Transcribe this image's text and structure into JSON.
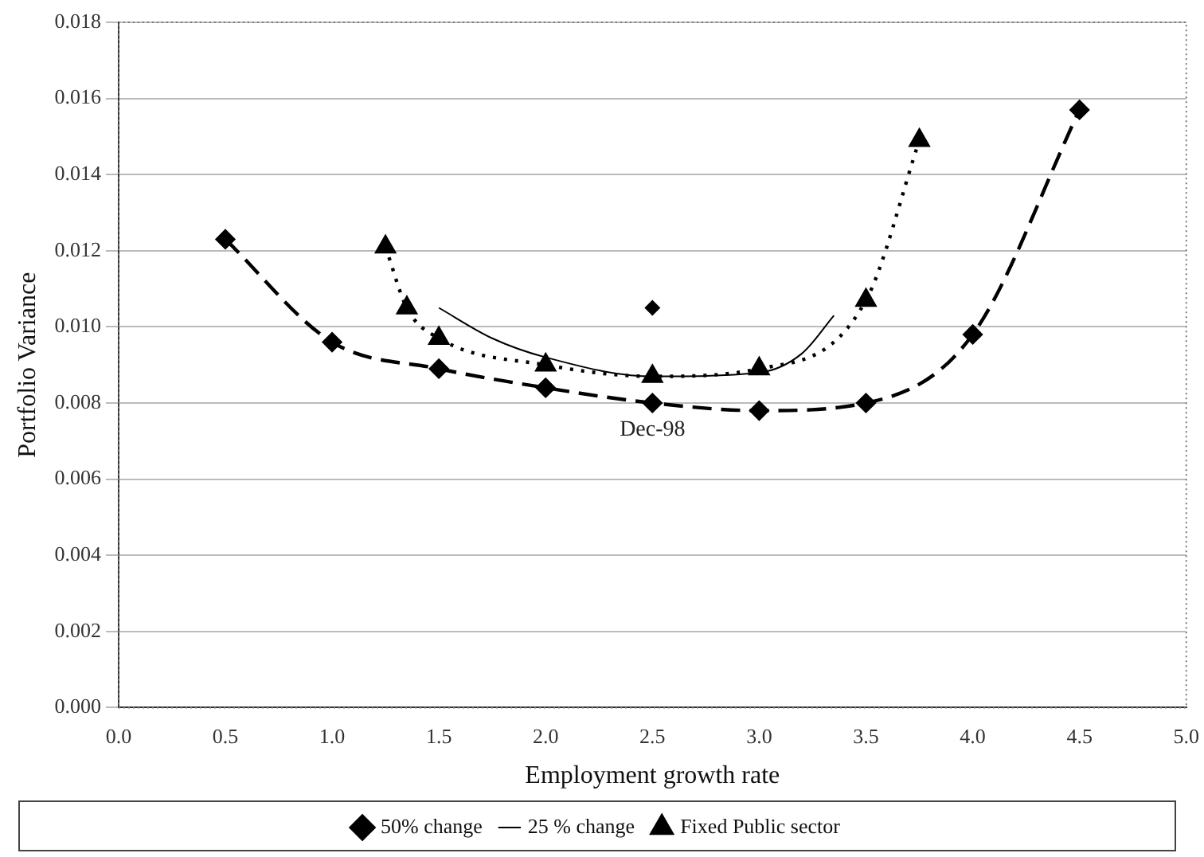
{
  "chart_data": {
    "type": "line",
    "xlabel": "Employment growth rate",
    "ylabel": "Portfolio Variance",
    "xlim": [
      0,
      5
    ],
    "xticks": [
      {
        "value": 0,
        "label": "0.0"
      },
      {
        "value": 0.5,
        "label": "0.5"
      },
      {
        "value": 1,
        "label": "1.0"
      },
      {
        "value": 1.5,
        "label": "1.5"
      },
      {
        "value": 2,
        "label": "2.0"
      },
      {
        "value": 2.5,
        "label": "2.5"
      },
      {
        "value": 3,
        "label": "3.0"
      },
      {
        "value": 3.5,
        "label": "3.5"
      },
      {
        "value": 4,
        "label": "4.0"
      },
      {
        "value": 4.5,
        "label": "4.5"
      },
      {
        "value": 5,
        "label": "5.0"
      }
    ],
    "ylim": [
      0,
      0.018
    ],
    "yticks": [
      {
        "value": 0,
        "label": "0.000"
      },
      {
        "value": 0.002,
        "label": "0.002"
      },
      {
        "value": 0.004,
        "label": "0.004"
      },
      {
        "value": 0.006,
        "label": "0.006"
      },
      {
        "value": 0.008,
        "label": "0.008"
      },
      {
        "value": 0.01,
        "label": "0.010"
      },
      {
        "value": 0.012,
        "label": "0.012"
      },
      {
        "value": 0.014,
        "label": "0.014"
      },
      {
        "value": 0.016,
        "label": "0.016"
      },
      {
        "value": 0.018,
        "label": "0.018"
      }
    ],
    "grid": "y",
    "legend": "bottom",
    "series": [
      {
        "name": "50% change",
        "color": "#000000",
        "marker": "diamond",
        "line_style": "dashed",
        "x": [
          0.5,
          1.0,
          1.5,
          2.0,
          2.5,
          3.0,
          3.5,
          4.0,
          4.5
        ],
        "values": [
          0.0123,
          0.0096,
          0.0089,
          0.0084,
          0.008,
          0.0078,
          0.008,
          0.0098,
          0.0157
        ]
      },
      {
        "name": "25 % change",
        "color": "#000000",
        "marker": "none",
        "line_style": "solid",
        "x": [
          1.5,
          1.75,
          2.0,
          2.5,
          3.0,
          3.2,
          3.35
        ],
        "values": [
          0.0105,
          0.0097,
          0.0092,
          0.0087,
          0.0088,
          0.0093,
          0.0103
        ]
      },
      {
        "name": "Fixed Public sector",
        "color": "#000000",
        "marker": "triangle",
        "line_style": "dotted",
        "x": [
          1.25,
          1.35,
          1.5,
          2.0,
          2.5,
          3.0,
          3.5,
          3.75
        ],
        "values": [
          0.0121,
          0.0105,
          0.0097,
          0.009,
          0.0087,
          0.0089,
          0.0107,
          0.0149
        ]
      },
      {
        "type": "scatter",
        "color": "#000000",
        "marker": "diamond",
        "x": [
          2.5
        ],
        "values": [
          0.0105
        ]
      }
    ],
    "annotations": [
      "Dec-98"
    ]
  }
}
